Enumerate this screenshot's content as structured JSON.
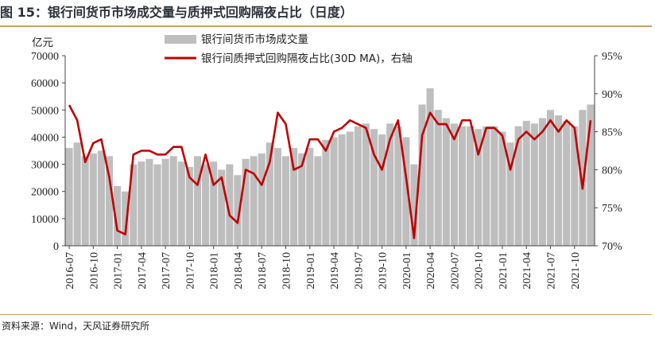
{
  "figure": {
    "title": "图 15：银行间货币市场成交量与质押式回购隔夜占比（日度）",
    "source": "资料来源：Wind，天风证券研究所"
  },
  "colors": {
    "bars": "#bebebe",
    "line": "#c00000",
    "accent_rule": "#c8a067",
    "title": "#2a2f3a"
  },
  "chart_data": {
    "type": "bar+line",
    "left_axis": {
      "unit_label": "亿元",
      "ylim": [
        0,
        70000
      ],
      "ticks": [
        "0",
        "10000",
        "20000",
        "30000",
        "40000",
        "50000",
        "60000",
        "70000"
      ]
    },
    "right_axis": {
      "ylim": [
        70,
        95
      ],
      "ticks": [
        "70%",
        "75%",
        "80%",
        "85%",
        "90%",
        "95%"
      ]
    },
    "x_ticks": [
      "2016-07",
      "2016-10",
      "2017-01",
      "2017-04",
      "2017-07",
      "2017-10",
      "2018-01",
      "2018-04",
      "2018-07",
      "2018-10",
      "2019-01",
      "2019-04",
      "2019-07",
      "2019-10",
      "2020-01",
      "2020-04",
      "2020-07",
      "2020-10",
      "2021-01",
      "2021-04",
      "2021-07",
      "2021-10"
    ],
    "x_months": [
      "2016-07",
      "2016-08",
      "2016-09",
      "2016-10",
      "2016-11",
      "2016-12",
      "2017-01",
      "2017-02",
      "2017-03",
      "2017-04",
      "2017-05",
      "2017-06",
      "2017-07",
      "2017-08",
      "2017-09",
      "2017-10",
      "2017-11",
      "2017-12",
      "2018-01",
      "2018-02",
      "2018-03",
      "2018-04",
      "2018-05",
      "2018-06",
      "2018-07",
      "2018-08",
      "2018-09",
      "2018-10",
      "2018-11",
      "2018-12",
      "2019-01",
      "2019-02",
      "2019-03",
      "2019-04",
      "2019-05",
      "2019-06",
      "2019-07",
      "2019-08",
      "2019-09",
      "2019-10",
      "2019-11",
      "2019-12",
      "2020-01",
      "2020-02",
      "2020-03",
      "2020-04",
      "2020-05",
      "2020-06",
      "2020-07",
      "2020-08",
      "2020-09",
      "2020-10",
      "2020-11",
      "2020-12",
      "2021-01",
      "2021-02",
      "2021-03",
      "2021-04",
      "2021-05",
      "2021-06",
      "2021-07",
      "2021-08",
      "2021-09",
      "2021-10",
      "2021-11",
      "2021-12"
    ],
    "series": [
      {
        "name": "银行间货币市场成交量",
        "type": "bar",
        "axis": "left",
        "values": [
          36000,
          38000,
          33000,
          34000,
          35000,
          33000,
          22000,
          20000,
          30000,
          31000,
          32000,
          30000,
          32000,
          33000,
          31000,
          29000,
          33000,
          30000,
          31000,
          28000,
          30000,
          26000,
          32000,
          33000,
          34000,
          38000,
          36000,
          33000,
          36000,
          34000,
          36000,
          33000,
          39000,
          40000,
          41000,
          42000,
          44000,
          45000,
          43000,
          41000,
          45000,
          44000,
          40000,
          30000,
          52000,
          58000,
          50000,
          47000,
          45000,
          44000,
          44000,
          43000,
          44000,
          44000,
          42000,
          38000,
          44000,
          46000,
          45000,
          47000,
          50000,
          48000,
          46000,
          44000,
          50000,
          52000
        ]
      },
      {
        "name": "银行间质押式回购隔夜占比(30D MA)，右轴",
        "type": "line",
        "axis": "right",
        "values": [
          88.5,
          86.5,
          81.0,
          83.5,
          84.0,
          79.0,
          72.0,
          71.5,
          82.0,
          82.5,
          82.5,
          82.0,
          82.0,
          83.0,
          83.0,
          79.0,
          78.0,
          82.0,
          78.0,
          79.0,
          74.0,
          73.0,
          80.0,
          79.5,
          78.0,
          81.0,
          87.5,
          86.0,
          80.0,
          80.5,
          84.0,
          84.0,
          82.5,
          85.0,
          85.5,
          86.5,
          86.0,
          85.5,
          82.0,
          80.0,
          84.0,
          86.5,
          79.0,
          71.0,
          84.5,
          87.5,
          86.0,
          86.0,
          84.0,
          86.5,
          86.5,
          82.0,
          85.5,
          85.5,
          84.5,
          80.0,
          84.0,
          85.0,
          84.0,
          85.0,
          86.5,
          85.0,
          86.5,
          85.5,
          77.5,
          86.5
        ]
      }
    ],
    "legend_placement": "top-center",
    "grid": false
  }
}
